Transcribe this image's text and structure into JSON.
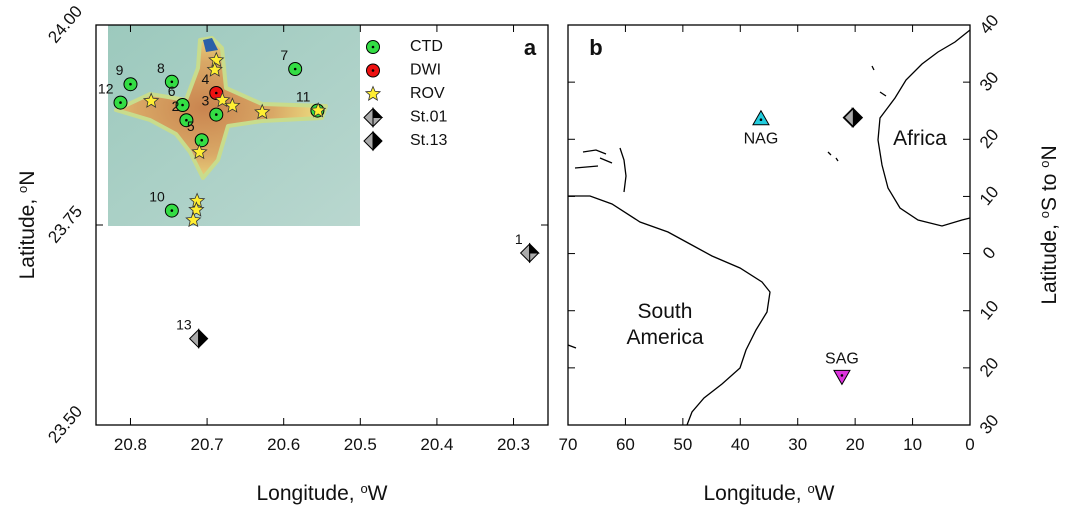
{
  "chart_data": [
    {
      "type": "scatter",
      "xlabel": [
        "Longitude, ",
        "o",
        "W"
      ],
      "ylabel": [
        "Latitude, ",
        "o",
        "N"
      ],
      "xlim": [
        20.845,
        20.255
      ],
      "xticks": [
        20.8,
        20.7,
        20.6,
        20.5,
        20.4,
        20.3
      ],
      "ylim": [
        23.5,
        24.0
      ],
      "yticks": [
        {
          "value": 24.0,
          "label": "24.00"
        },
        {
          "value": 23.75,
          "label": "23.75"
        },
        {
          "value": 23.5,
          "label": "23.50"
        }
      ],
      "legend": "top-right",
      "annotations": [
        "a"
      ],
      "series": [
        {
          "name": "CTD",
          "marker": "circle",
          "color": "#33dd44",
          "x": [
            20.585,
            20.8,
            20.746,
            20.813,
            20.732,
            20.727,
            20.688,
            20.707,
            20.556,
            20.746
          ],
          "y": [
            23.945,
            23.926,
            23.929,
            23.903,
            23.9,
            23.881,
            23.888,
            23.856,
            23.893,
            23.768
          ],
          "labels": [
            "7",
            "9",
            "8",
            "12",
            "6",
            "2",
            "3",
            "5",
            "11",
            "10"
          ]
        },
        {
          "name": "DWI",
          "marker": "circle",
          "color": "#ee1111",
          "x": [
            20.688
          ],
          "y": [
            23.915
          ],
          "labels": [
            "4"
          ]
        },
        {
          "name": "ROV",
          "marker": "star",
          "color": "#ffee33",
          "x": [
            20.688,
            20.69,
            20.68,
            20.667,
            20.628,
            20.555,
            20.773,
            20.71,
            20.713,
            20.714,
            20.718
          ],
          "y": [
            23.956,
            23.944,
            23.906,
            23.899,
            23.891,
            23.893,
            23.905,
            23.841,
            23.78,
            23.769,
            23.756
          ]
        },
        {
          "name": "St.01",
          "marker": "diamond-diag",
          "color": "#000000",
          "x": [
            20.279
          ],
          "y": [
            23.715
          ],
          "labels": [
            "1"
          ]
        },
        {
          "name": "St.13",
          "marker": "diamond-split",
          "color": "#000000",
          "x": [
            20.711
          ],
          "y": [
            23.608
          ],
          "labels": [
            "13"
          ]
        }
      ]
    },
    {
      "type": "scatter",
      "xlabel": [
        "Longitude, ",
        "o",
        "W"
      ],
      "y2label": [
        "Latitude, ",
        "o",
        "S to ",
        "o",
        "N"
      ],
      "xlim": [
        70,
        0
      ],
      "xticks": [
        70,
        60,
        50,
        40,
        30,
        20,
        10,
        0
      ],
      "y2lim": [
        -30,
        40
      ],
      "y2ticks": [
        40,
        30,
        20,
        10,
        0,
        {
          "value": -10,
          "label": "10"
        },
        {
          "value": -20,
          "label": "20"
        },
        {
          "value": -30,
          "label": "30"
        }
      ],
      "legend": false,
      "annotations": [
        "b",
        "Africa",
        "South",
        "America"
      ],
      "series": [
        {
          "name": "NAG",
          "marker": "triangle-up",
          "color": "#22ccdd",
          "axis": "y2",
          "x": [
            36.4
          ],
          "y": [
            23.6
          ]
        },
        {
          "name": "SAG",
          "marker": "triangle-down",
          "color": "#dd33dd",
          "axis": "y2",
          "x": [
            22.3
          ],
          "y": [
            -21.5
          ]
        },
        {
          "marker": "diamond-diag",
          "color": "#000000",
          "axis": "y2",
          "x": [
            20.5
          ],
          "y": [
            23.8
          ]
        },
        {
          "marker": "diamond-split",
          "color": "#000000",
          "axis": "y2",
          "x": [
            20.3
          ],
          "y": [
            23.8
          ]
        }
      ]
    }
  ]
}
